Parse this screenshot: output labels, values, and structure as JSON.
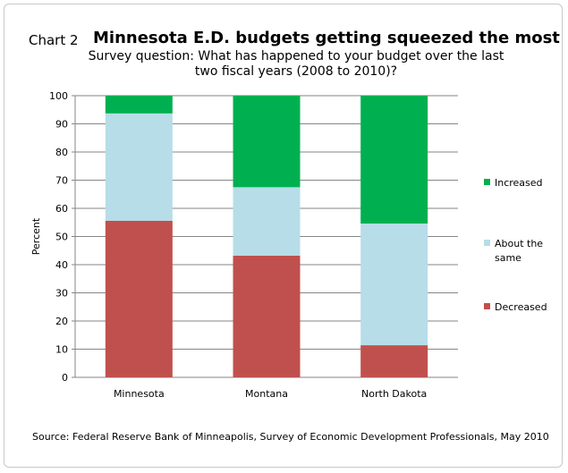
{
  "header": {
    "chart_number": "Chart 2",
    "title": "Minnesota E.D. budgets getting squeezed the most",
    "subtitle_line1": "Survey question: What has happened to your budget over the last",
    "subtitle_line2": "two fiscal years (2008 to 2010)?"
  },
  "footer": {
    "source": "Source: Federal Reserve Bank of Minneapolis, Survey of Economic Development Professionals, May 2010"
  },
  "colors": {
    "decreased": "#c0504d",
    "about_same": "#b7dde8",
    "increased": "#00b050"
  },
  "chart_data": {
    "type": "bar",
    "stacked": true,
    "categories": [
      "Minnesota",
      "Montana",
      "North Dakota"
    ],
    "series": [
      {
        "name": "Decreased",
        "values": [
          55.6,
          43.2,
          11.4
        ]
      },
      {
        "name": "About the same",
        "values": [
          38.1,
          24.3,
          43.2
        ]
      },
      {
        "name": "Increased",
        "values": [
          6.3,
          32.5,
          45.4
        ]
      }
    ],
    "legend_entries": [
      {
        "key": "increased",
        "label_lines": [
          "Increased"
        ]
      },
      {
        "key": "about_same",
        "label_lines": [
          "About the",
          "same"
        ]
      },
      {
        "key": "decreased",
        "label_lines": [
          "Decreased"
        ]
      }
    ],
    "ylabel": "Percent",
    "ylim": [
      0,
      100
    ],
    "yticks": [
      "0",
      "10",
      "20",
      "30",
      "40",
      "50",
      "60",
      "70",
      "80",
      "90",
      "100"
    ],
    "grid": true,
    "legend_position": "right"
  }
}
